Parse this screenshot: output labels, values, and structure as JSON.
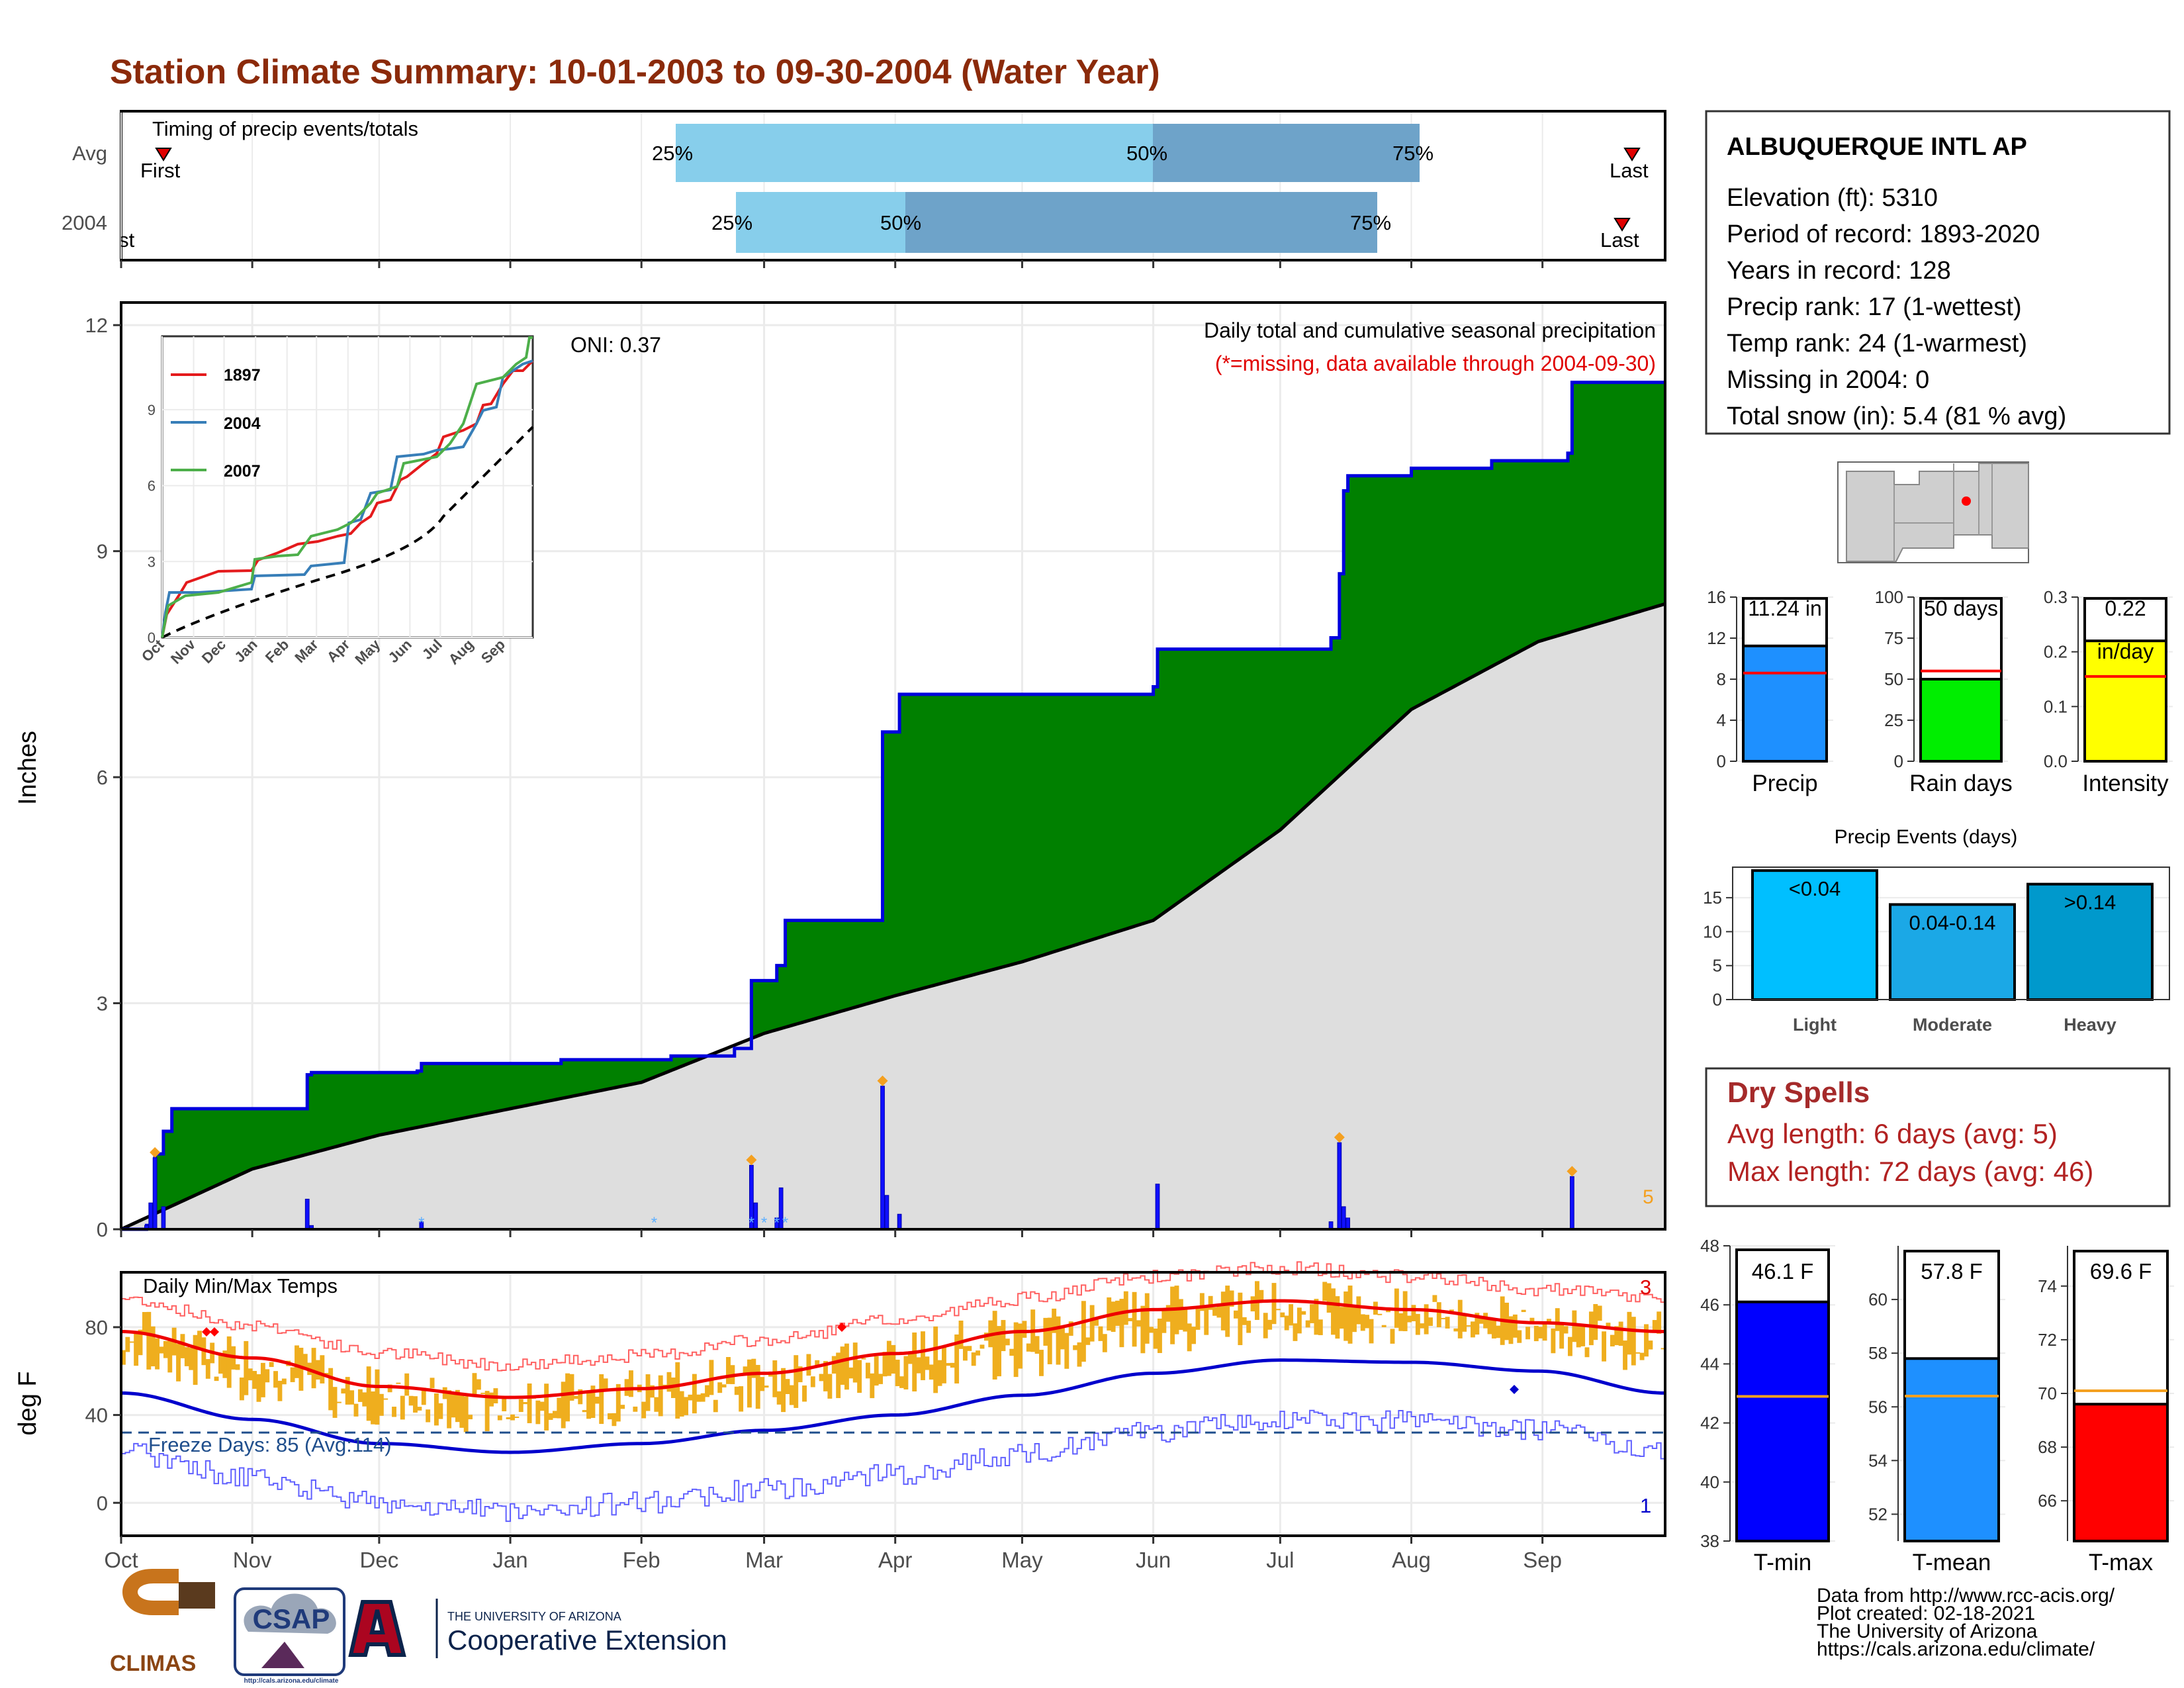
{
  "title": "Station Climate Summary: 10-01-2003 to 09-30-2004 (Water Year)",
  "timing": {
    "label": "Timing of precip events/totals",
    "rows": [
      {
        "label": "Avg",
        "first_label": "First",
        "last_label": "Last",
        "q25": "25%",
        "q50": "50%",
        "q75": "75%"
      },
      {
        "label": "2004",
        "first_label": "First",
        "last_label": "Last",
        "q25": "25%",
        "q50": "50%",
        "q75": "75%"
      }
    ]
  },
  "precip_panel": {
    "ylabel": "Inches",
    "oni": "ONI: 0.37",
    "header": "Daily total and cumulative seasonal precipitation",
    "subheader": "(*=missing, data available through 2004-09-30)",
    "count_label": "5",
    "yticks": [
      "0",
      "3",
      "6",
      "9",
      "12"
    ],
    "inset": {
      "legend": [
        "1897",
        "2004",
        "2007"
      ],
      "colors": [
        "#e41a1c",
        "#377eb8",
        "#4daf4a"
      ],
      "yticks": [
        "0",
        "3",
        "6",
        "9"
      ],
      "xticks": [
        "Oct",
        "Nov",
        "Dec",
        "Jan",
        "Feb",
        "Mar",
        "Apr",
        "May",
        "Jun",
        "Jul",
        "Aug",
        "Sep"
      ]
    }
  },
  "temp_panel": {
    "ylabel": "deg F",
    "label": "Daily Min/Max Temps",
    "freeze": "Freeze Days: 85 (Avg:114)",
    "max_count": "3",
    "min_count": "1",
    "yticks": [
      "0",
      "40",
      "80"
    ],
    "xticks": [
      "Oct",
      "Nov",
      "Dec",
      "Jan",
      "Feb",
      "Mar",
      "Apr",
      "May",
      "Jun",
      "Jul",
      "Aug",
      "Sep"
    ]
  },
  "station": {
    "name": "ALBUQUERQUE INTL AP",
    "lines": [
      "Elevation (ft): 5310",
      "Period of record: 1893-2020",
      "Years in record: 128",
      "Precip rank: 17 (1-wettest)",
      "Temp rank: 24 (1-warmest)",
      "Missing in 2004: 0",
      "Total snow (in): 5.4 (81 % avg)"
    ]
  },
  "mini_bars": [
    {
      "label": "Precip",
      "value_text": "11.24 in",
      "value": 11.24,
      "avg": 8.6,
      "ymax": 16,
      "yticks": [
        "0",
        "4",
        "8",
        "12",
        "16"
      ],
      "tickvals": [
        0,
        4,
        8,
        12,
        16
      ],
      "color": "#1e90ff"
    },
    {
      "label": "Rain days",
      "value_text": "50 days",
      "value": 50,
      "avg": 55,
      "ymax": 100,
      "yticks": [
        "0",
        "25",
        "50",
        "75",
        "100"
      ],
      "tickvals": [
        0,
        25,
        50,
        75,
        100
      ],
      "color": "#00ee00"
    },
    {
      "label": "Intensity",
      "value_text": "0.22",
      "value_text2": "in/day",
      "value": 0.22,
      "avg": 0.155,
      "ymax": 0.3,
      "yticks": [
        "0.0",
        "0.1",
        "0.2",
        "0.3"
      ],
      "tickvals": [
        0,
        0.1,
        0.2,
        0.3
      ],
      "color": "#ffff00"
    }
  ],
  "precip_events": {
    "title": "Precip Events (days)",
    "yticks": [
      "0",
      "5",
      "10",
      "15"
    ],
    "bars": [
      {
        "label": "Light",
        "range": "<0.04",
        "value": 19,
        "color": "#00bfff"
      },
      {
        "label": "Moderate",
        "range": "0.04-0.14",
        "value": 14,
        "color": "#1ba8e6"
      },
      {
        "label": "Heavy",
        "range": ">0.14",
        "value": 17,
        "color": "#0099cc"
      }
    ]
  },
  "dry_spells": {
    "title": "Dry Spells",
    "avg_line": "Avg length: 6 days (avg: 5)",
    "max_line": "Max length: 72 days (avg: 46)"
  },
  "temp_bars": [
    {
      "label": "T-min",
      "value_text": "46.1 F",
      "value": 46.1,
      "avg": 42.9,
      "ymin": 38,
      "ymax": 48,
      "yticks": [
        "38",
        "40",
        "42",
        "44",
        "46",
        "48"
      ],
      "tickvals": [
        38,
        40,
        42,
        44,
        46,
        48
      ],
      "color": "#0000ff"
    },
    {
      "label": "T-mean",
      "value_text": "57.8 F",
      "value": 57.8,
      "avg": 56.4,
      "ymin": 51,
      "ymax": 62,
      "yticks": [
        "52",
        "54",
        "56",
        "58",
        "60"
      ],
      "tickvals": [
        52,
        54,
        56,
        58,
        60
      ],
      "color": "#1e90ff"
    },
    {
      "label": "T-max",
      "value_text": "69.6 F",
      "value": 69.6,
      "avg": 70.1,
      "ymin": 64.5,
      "ymax": 75.5,
      "yticks": [
        "66",
        "68",
        "70",
        "72",
        "74"
      ],
      "tickvals": [
        66,
        68,
        70,
        72,
        74
      ],
      "color": "#ff0000"
    }
  ],
  "footer": {
    "lines": [
      "Data from http://www.rcc-acis.org/",
      "Plot created: 02-18-2021",
      "The University of Arizona",
      "https://cals.arizona.edu/climate/"
    ]
  },
  "logos": {
    "climas": "CLIMAS",
    "csap": "CSAP",
    "csap_url": "http://cals.arizona.edu/climate",
    "ua_small": "THE UNIVERSITY OF ARIZONA",
    "ua_big": "Cooperative Extension"
  },
  "chart_data": {
    "type": "area",
    "x_axis": [
      "Oct",
      "Nov",
      "Dec",
      "Jan",
      "Feb",
      "Mar",
      "Apr",
      "May",
      "Jun",
      "Jul",
      "Aug",
      "Sep"
    ],
    "cumulative_2004": [
      {
        "day": 0,
        "in": 0
      },
      {
        "day": 6,
        "in": 0.05
      },
      {
        "day": 7,
        "in": 0.3
      },
      {
        "day": 8,
        "in": 1.0
      },
      {
        "day": 10,
        "in": 1.3
      },
      {
        "day": 12,
        "in": 1.6
      },
      {
        "day": 43,
        "in": 1.6
      },
      {
        "day": 44,
        "in": 2.05
      },
      {
        "day": 45,
        "in": 2.08
      },
      {
        "day": 70,
        "in": 2.1
      },
      {
        "day": 71,
        "in": 2.2
      },
      {
        "day": 100,
        "in": 2.2
      },
      {
        "day": 104,
        "in": 2.25
      },
      {
        "day": 130,
        "in": 2.3
      },
      {
        "day": 145,
        "in": 2.4
      },
      {
        "day": 149,
        "in": 3.3
      },
      {
        "day": 155,
        "in": 3.5
      },
      {
        "day": 157,
        "in": 4.1
      },
      {
        "day": 179,
        "in": 4.1
      },
      {
        "day": 180,
        "in": 6.6
      },
      {
        "day": 184,
        "in": 7.1
      },
      {
        "day": 244,
        "in": 7.2
      },
      {
        "day": 245,
        "in": 7.7
      },
      {
        "day": 286,
        "in": 7.85
      },
      {
        "day": 288,
        "in": 8.7
      },
      {
        "day": 289,
        "in": 9.8
      },
      {
        "day": 290,
        "in": 10.0
      },
      {
        "day": 305,
        "in": 10.1
      },
      {
        "day": 324,
        "in": 10.2
      },
      {
        "day": 342,
        "in": 10.3
      },
      {
        "day": 343,
        "in": 11.24
      },
      {
        "day": 365,
        "in": 11.24
      }
    ],
    "cumulative_avg": [
      {
        "day": 0,
        "in": 0
      },
      {
        "day": 31,
        "in": 0.8
      },
      {
        "day": 61,
        "in": 1.25
      },
      {
        "day": 92,
        "in": 1.6
      },
      {
        "day": 123,
        "in": 1.95
      },
      {
        "day": 152,
        "in": 2.6
      },
      {
        "day": 183,
        "in": 3.1
      },
      {
        "day": 213,
        "in": 3.55
      },
      {
        "day": 244,
        "in": 4.1
      },
      {
        "day": 274,
        "in": 5.3
      },
      {
        "day": 305,
        "in": 6.9
      },
      {
        "day": 335,
        "in": 7.8
      },
      {
        "day": 365,
        "in": 8.3
      }
    ],
    "daily_bars": [
      {
        "day": 6,
        "in": 0.05
      },
      {
        "day": 7,
        "in": 0.35
      },
      {
        "day": 8,
        "in": 0.95
      },
      {
        "day": 10,
        "in": 0.3
      },
      {
        "day": 44,
        "in": 0.4
      },
      {
        "day": 45,
        "in": 0.05
      },
      {
        "day": 71,
        "in": 0.1
      },
      {
        "day": 149,
        "in": 0.85
      },
      {
        "day": 150,
        "in": 0.35
      },
      {
        "day": 155,
        "in": 0.15
      },
      {
        "day": 156,
        "in": 0.55
      },
      {
        "day": 180,
        "in": 1.9
      },
      {
        "day": 181,
        "in": 0.45
      },
      {
        "day": 184,
        "in": 0.2
      },
      {
        "day": 245,
        "in": 0.6
      },
      {
        "day": 286,
        "in": 0.1
      },
      {
        "day": 288,
        "in": 1.15
      },
      {
        "day": 289,
        "in": 0.3
      },
      {
        "day": 290,
        "in": 0.15
      },
      {
        "day": 343,
        "in": 0.7
      }
    ],
    "ylim": [
      0,
      12.3
    ],
    "temps": {
      "ylim": [
        -15,
        105
      ],
      "freeze_line": 32,
      "normal_max": [
        {
          "day": 0,
          "f": 78
        },
        {
          "day": 31,
          "f": 66
        },
        {
          "day": 61,
          "f": 53
        },
        {
          "day": 92,
          "f": 48
        },
        {
          "day": 123,
          "f": 52
        },
        {
          "day": 152,
          "f": 59
        },
        {
          "day": 183,
          "f": 68
        },
        {
          "day": 213,
          "f": 78
        },
        {
          "day": 244,
          "f": 88
        },
        {
          "day": 274,
          "f": 92
        },
        {
          "day": 305,
          "f": 88
        },
        {
          "day": 335,
          "f": 82
        },
        {
          "day": 365,
          "f": 78
        }
      ],
      "normal_min": [
        {
          "day": 0,
          "f": 50
        },
        {
          "day": 31,
          "f": 38
        },
        {
          "day": 61,
          "f": 27
        },
        {
          "day": 92,
          "f": 23
        },
        {
          "day": 123,
          "f": 27
        },
        {
          "day": 152,
          "f": 33
        },
        {
          "day": 183,
          "f": 40
        },
        {
          "day": 213,
          "f": 49
        },
        {
          "day": 244,
          "f": 59
        },
        {
          "day": 274,
          "f": 65
        },
        {
          "day": 305,
          "f": 64
        },
        {
          "day": 335,
          "f": 60
        },
        {
          "day": 365,
          "f": 50
        }
      ]
    }
  }
}
